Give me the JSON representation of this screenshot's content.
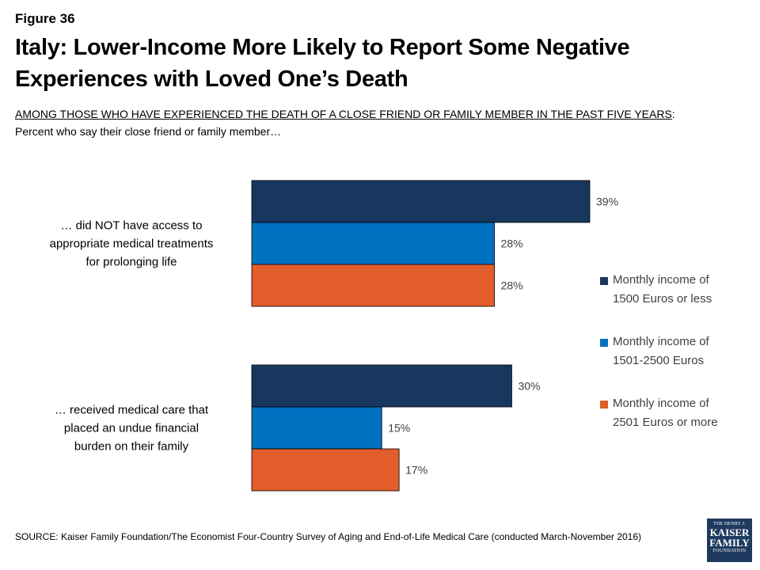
{
  "header": {
    "figure_label": "Figure 36",
    "title": "Italy: Lower-Income More Likely to Report Some Negative Experiences with Loved One’s Death",
    "subtitle_underlined": "AMONG THOSE WHO HAVE EXPERIENCED THE DEATH OF A CLOSE FRIEND OR FAMILY MEMBER IN THE PAST FIVE YEARS",
    "subtitle_colon": ":",
    "subtitle_line2": "Percent who say their close friend or family member…"
  },
  "chart_data": {
    "type": "bar",
    "orientation": "horizontal",
    "categories": [
      "… did NOT have access to appropriate medical treatments for prolonging life",
      "… received medical care that placed an undue financial burden on their family"
    ],
    "category_lines": [
      [
        "… did NOT have access to",
        "appropriate medical treatments",
        "for prolonging life"
      ],
      [
        "… received medical care that",
        "placed an undue financial",
        "burden on their family"
      ]
    ],
    "series": [
      {
        "name": "Monthly income of 1500 Euros or less",
        "color": "#17375e",
        "values": [
          39,
          30
        ],
        "labels": [
          "39%",
          "30%"
        ]
      },
      {
        "name": "Monthly income of 1501-2500 Euros",
        "color": "#0070c0",
        "values": [
          28,
          15
        ],
        "labels": [
          "28%",
          "15%"
        ]
      },
      {
        "name": "Monthly income of 2501 Euros or more",
        "color": "#e15d29",
        "values": [
          28,
          17
        ],
        "labels": [
          "28%",
          "17%"
        ]
      }
    ],
    "legend_lines": [
      [
        "Monthly income of",
        "1500 Euros or less"
      ],
      [
        "Monthly income of",
        "1501-2500 Euros"
      ],
      [
        "Monthly income of",
        "2501 Euros or more"
      ]
    ],
    "xlim": [
      0,
      100
    ],
    "legend_position": "right",
    "grid": false
  },
  "footer": {
    "source": "SOURCE: Kaiser Family Foundation/The Economist Four-Country Survey of Aging and End-of-Life Medical Care (conducted March-November 2016)",
    "logo_line1": "THE HENRY J.",
    "logo_line2": "KAISER",
    "logo_line3": "FAMILY",
    "logo_line4": "FOUNDATION"
  }
}
